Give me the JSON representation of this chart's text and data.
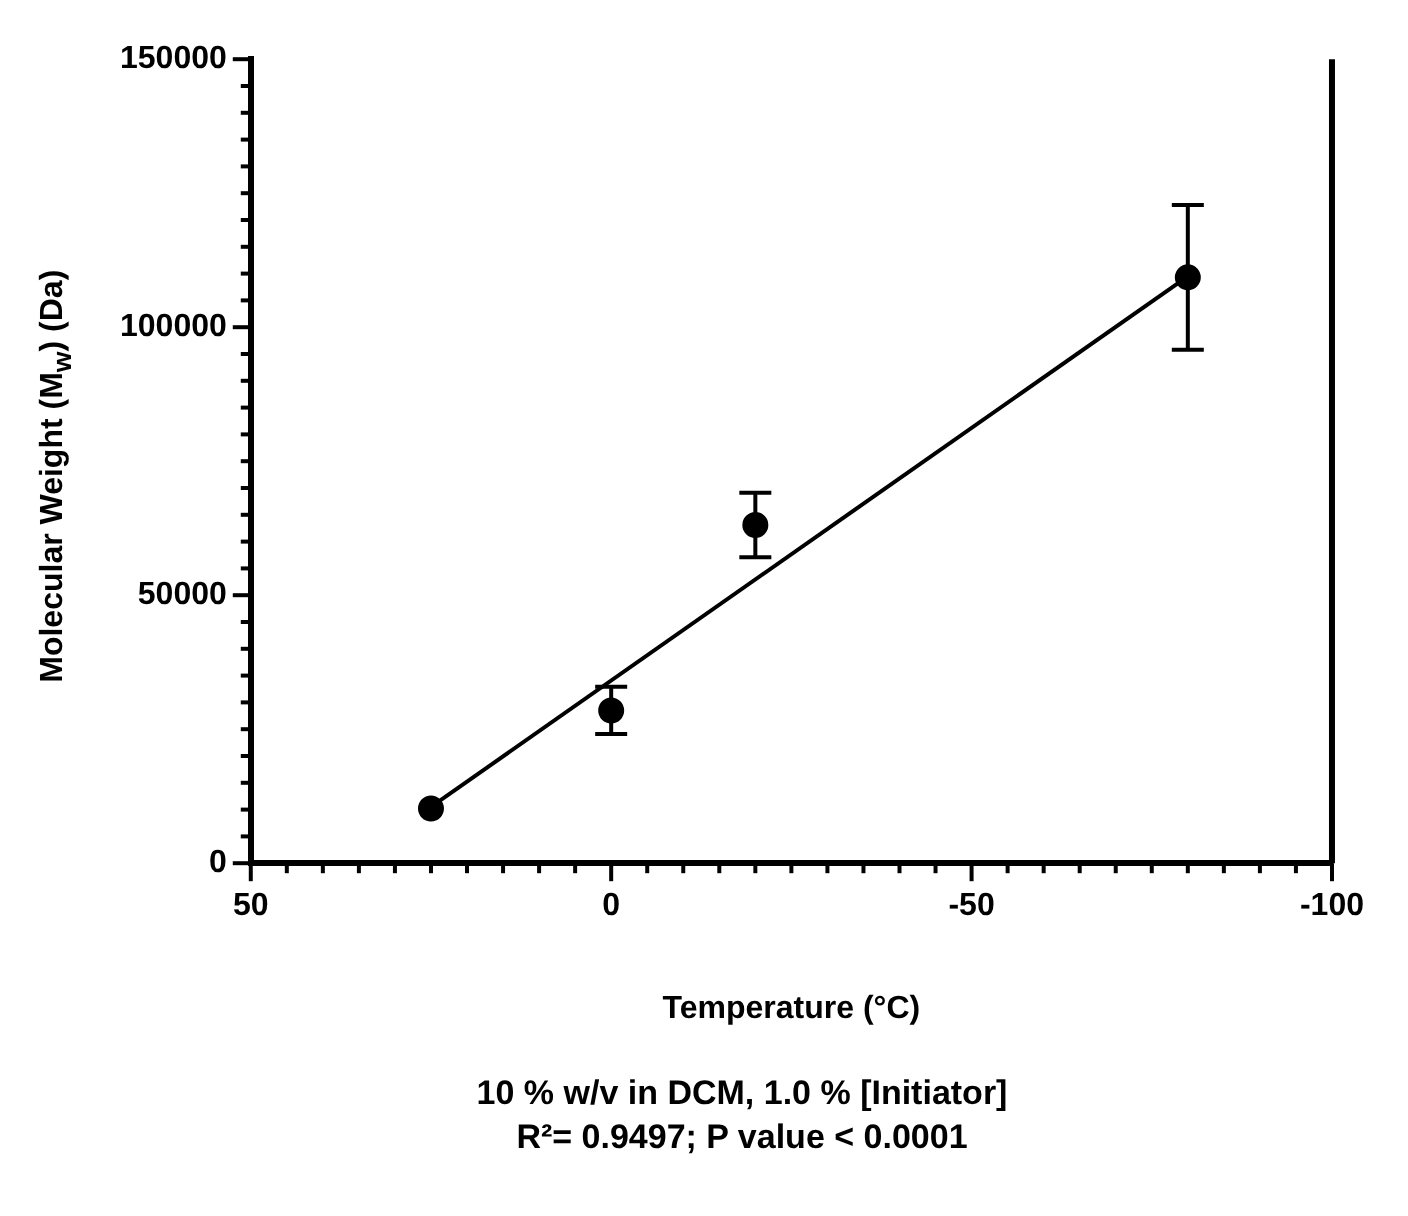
{
  "chart_data": {
    "type": "scatter",
    "xlabel": "Temperature (°C)",
    "ylabel": "Molecular Weight (M$_{w}$) (Da)",
    "xlim": [
      50,
      -100
    ],
    "ylim": [
      0,
      150000
    ],
    "xticks": [
      50,
      {
        "value": 45,
        "label": null
      },
      {
        "value": 40,
        "label": null
      },
      {
        "value": 35,
        "label": null
      },
      {
        "value": 30,
        "label": null
      },
      {
        "value": 25,
        "label": null
      },
      {
        "value": 20,
        "label": null
      },
      {
        "value": 15,
        "label": null
      },
      {
        "value": 10,
        "label": null
      },
      {
        "value": 5,
        "label": null
      },
      0,
      {
        "value": -5,
        "label": null
      },
      {
        "value": -10,
        "label": null
      },
      {
        "value": -15,
        "label": null
      },
      {
        "value": -20,
        "label": null
      },
      {
        "value": -25,
        "label": null
      },
      {
        "value": -30,
        "label": null
      },
      {
        "value": -35,
        "label": null
      },
      {
        "value": -40,
        "label": null
      },
      {
        "value": -45,
        "label": null
      },
      -50,
      {
        "value": -55,
        "label": null
      },
      {
        "value": -60,
        "label": null
      },
      {
        "value": -65,
        "label": null
      },
      {
        "value": -70,
        "label": null
      },
      {
        "value": -75,
        "label": null
      },
      {
        "value": -80,
        "label": null
      },
      {
        "value": -85,
        "label": null
      },
      {
        "value": -90,
        "label": null
      },
      {
        "value": -95,
        "label": null
      },
      -100
    ],
    "yticks": [
      0,
      {
        "value": 5000,
        "label": null
      },
      {
        "value": 10000,
        "label": null
      },
      {
        "value": 15000,
        "label": null
      },
      {
        "value": 20000,
        "label": null
      },
      {
        "value": 25000,
        "label": null
      },
      {
        "value": 30000,
        "label": null
      },
      {
        "value": 35000,
        "label": null
      },
      {
        "value": 40000,
        "label": null
      },
      {
        "value": 45000,
        "label": null
      },
      50000,
      {
        "value": 55000,
        "label": null
      },
      {
        "value": 60000,
        "label": null
      },
      {
        "value": 65000,
        "label": null
      },
      {
        "value": 70000,
        "label": null
      },
      {
        "value": 75000,
        "label": null
      },
      {
        "value": 80000,
        "label": null
      },
      {
        "value": 85000,
        "label": null
      },
      {
        "value": 90000,
        "label": null
      },
      {
        "value": 95000,
        "label": null
      },
      100000,
      {
        "value": 105000,
        "label": null
      },
      {
        "value": 110000,
        "label": null
      },
      {
        "value": 115000,
        "label": null
      },
      {
        "value": 120000,
        "label": null
      },
      {
        "value": 125000,
        "label": null
      },
      {
        "value": 130000,
        "label": null
      },
      {
        "value": 135000,
        "label": null
      },
      {
        "value": 140000,
        "label": null
      },
      {
        "value": 145000,
        "label": null
      },
      150000
    ],
    "series": [
      {
        "type": "scatter",
        "color": "#000000",
        "marker": "circle",
        "x": [
          25,
          0,
          -20,
          -80
        ],
        "values": [
          10200,
          28500,
          63100,
          109300
        ],
        "errors": [
          null,
          4400,
          6000,
          13500
        ]
      },
      {
        "type": "line",
        "color": "#000000",
        "marker": "none",
        "line_style": "solid",
        "x": [
          25,
          -80
        ],
        "values": [
          10500,
          109500
        ]
      }
    ],
    "grid": false,
    "legend": false,
    "annotations": [
      "10 % w/v in DCM, 1.0 % [Initiator]",
      "R²= 0.9497; P value < 0.0001"
    ]
  }
}
